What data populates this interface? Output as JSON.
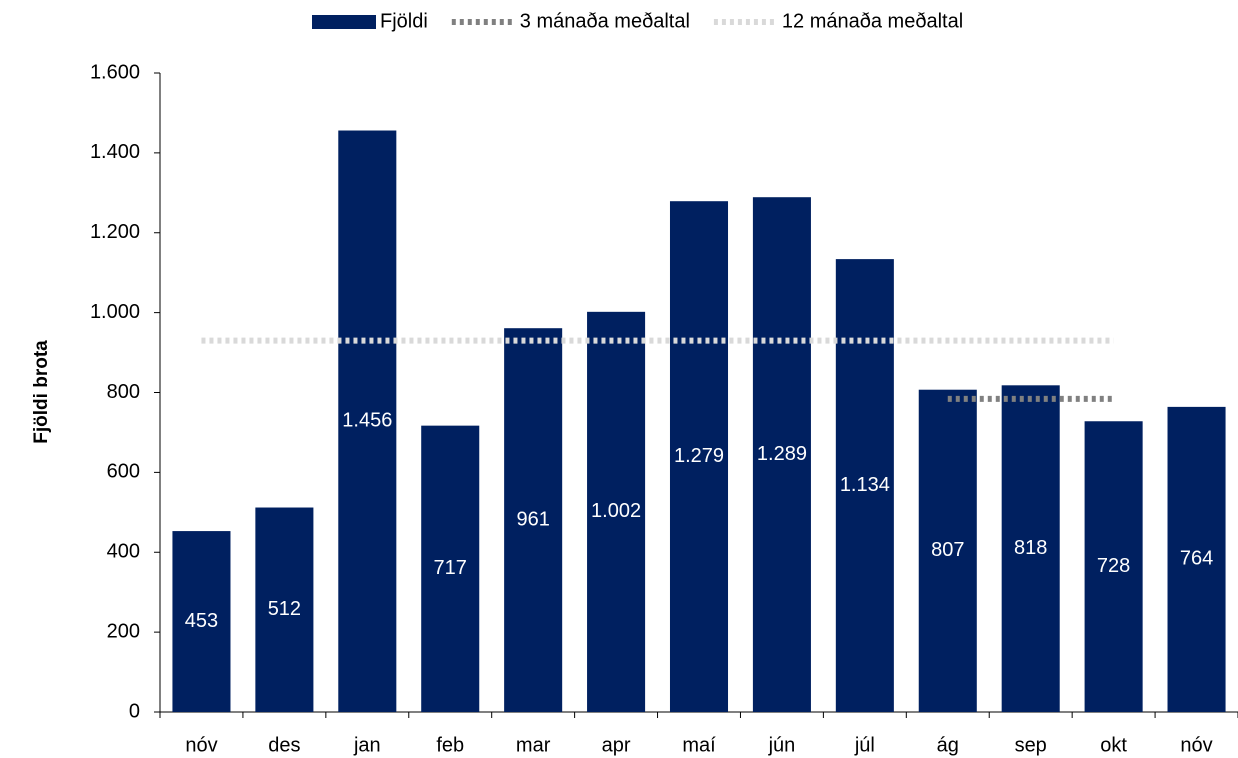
{
  "chart_data": {
    "type": "bar",
    "y_axis_label": "Fjöldi brota",
    "categories": [
      "nóv",
      "des",
      "jan",
      "feb",
      "mar",
      "apr",
      "maí",
      "jún",
      "júl",
      "ág",
      "sep",
      "okt",
      "nóv"
    ],
    "series": [
      {
        "name": "Fjöldi",
        "type": "bar",
        "color": "#002060",
        "values": [
          453,
          512,
          1456,
          717,
          961,
          1002,
          1279,
          1289,
          1134,
          807,
          818,
          728,
          764
        ],
        "value_labels": [
          "453",
          "512",
          "1.456",
          "717",
          "961",
          "1.002",
          "1.279",
          "1.289",
          "1.134",
          "807",
          "818",
          "728",
          "764"
        ]
      },
      {
        "name": "3 mánaða meðaltal",
        "type": "line",
        "color": "#808080",
        "values": [
          null,
          null,
          null,
          null,
          null,
          null,
          null,
          null,
          null,
          784,
          784,
          784,
          null
        ]
      },
      {
        "name": "12 mánaða meðaltal",
        "type": "line",
        "color": "#d9d9d9",
        "values": [
          930,
          930,
          930,
          930,
          930,
          930,
          930,
          930,
          930,
          930,
          930,
          930,
          null
        ]
      }
    ],
    "ylim": [
      0,
      1600
    ],
    "yticks": [
      0,
      200,
      400,
      600,
      800,
      {
        "value": 1000,
        "label": "1.000"
      },
      {
        "value": 1200,
        "label": "1.200"
      },
      {
        "value": 1400,
        "label": "1.400"
      },
      {
        "value": 1600,
        "label": "1.600"
      }
    ],
    "legend": "top"
  }
}
